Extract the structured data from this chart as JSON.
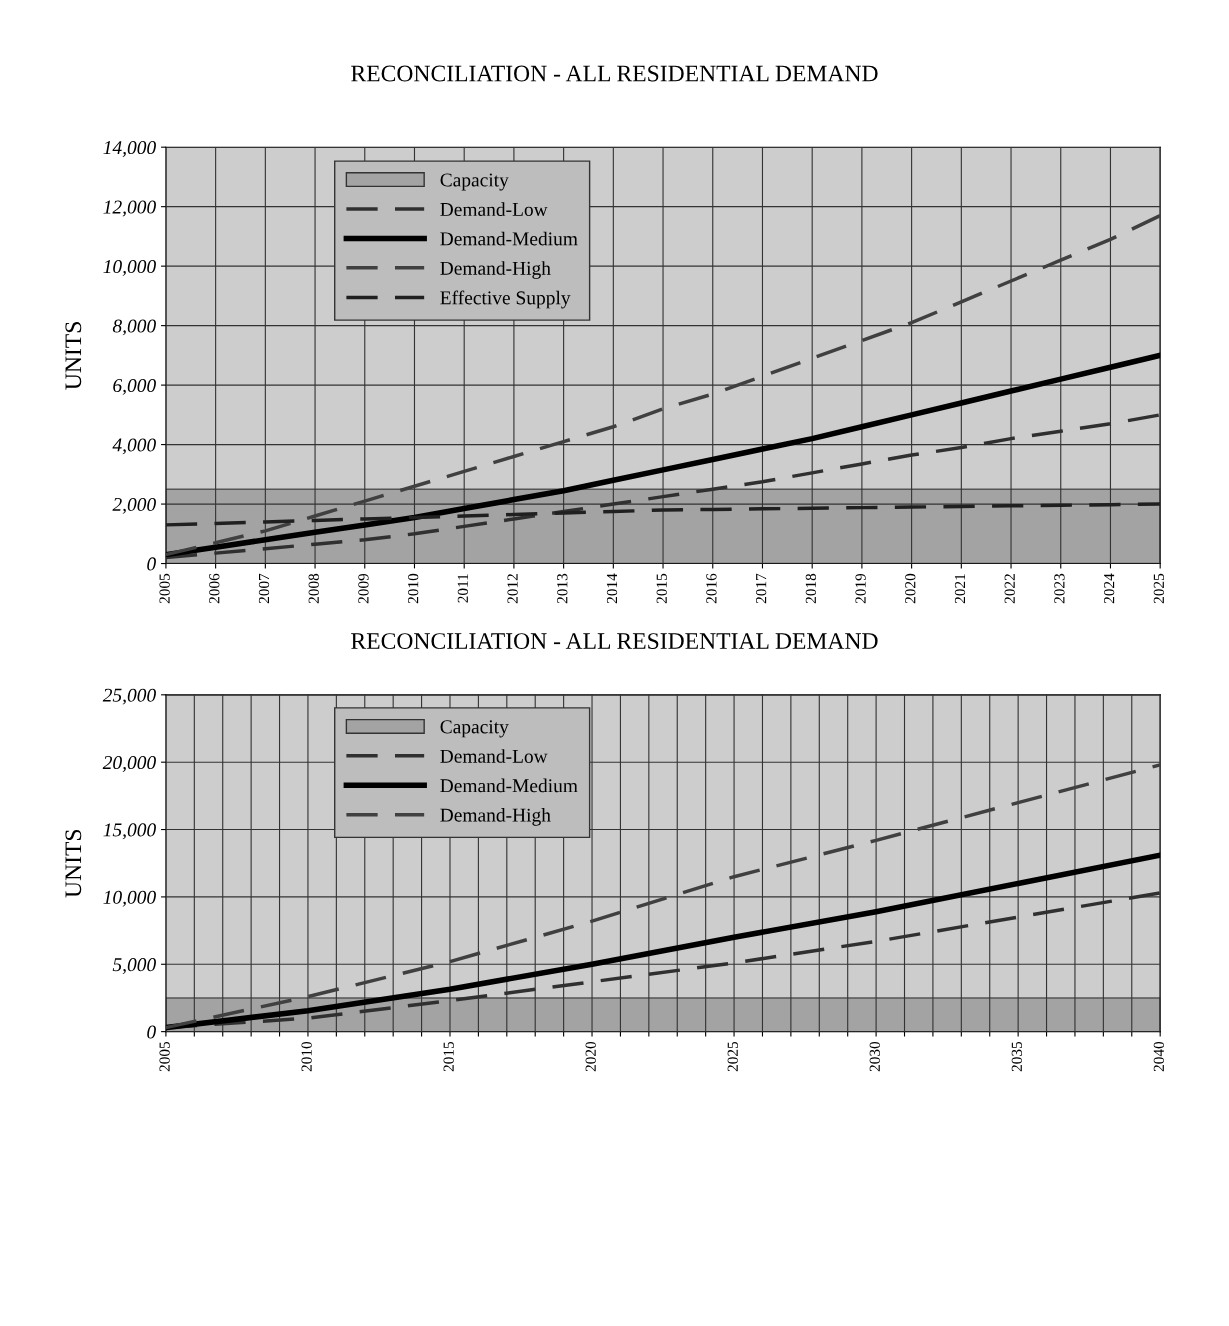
{
  "chart_data": [
    {
      "type": "line",
      "title": "RECONCILIATION - ALL RESIDENTIAL DEMAND",
      "ylabel": "UNITS",
      "x": [
        2005,
        2006,
        2007,
        2008,
        2009,
        2010,
        2011,
        2012,
        2013,
        2014,
        2015,
        2016,
        2017,
        2018,
        2019,
        2020,
        2021,
        2022,
        2023,
        2024,
        2025
      ],
      "series": [
        {
          "name": "Capacity",
          "type": "area",
          "color": "#a3a3a3",
          "values": [
            2500,
            2500,
            2500,
            2500,
            2500,
            2500,
            2500,
            2500,
            2500,
            2500,
            2500,
            2500,
            2500,
            2500,
            2500,
            2500,
            2500,
            2500,
            2500,
            2500,
            2500
          ]
        },
        {
          "name": "Demand-Low",
          "color": "#303030",
          "line_style": "dashed",
          "values": [
            200,
            350,
            500,
            650,
            800,
            1000,
            1250,
            1500,
            1750,
            2000,
            2250,
            2500,
            2750,
            3050,
            3350,
            3650,
            3900,
            4200,
            4450,
            4700,
            5000
          ]
        },
        {
          "name": "Demand-Medium",
          "color": "#000000",
          "line_style": "solid",
          "values": [
            300,
            550,
            800,
            1050,
            1300,
            1550,
            1850,
            2150,
            2450,
            2800,
            3150,
            3500,
            3850,
            4200,
            4600,
            5000,
            5400,
            5800,
            6200,
            6600,
            7000
          ]
        },
        {
          "name": "Demand-High",
          "color": "#404040",
          "line_style": "dashed",
          "values": [
            300,
            700,
            1100,
            1600,
            2100,
            2600,
            3100,
            3600,
            4100,
            4600,
            5200,
            5700,
            6300,
            6900,
            7500,
            8100,
            8800,
            9500,
            10200,
            10900,
            11700
          ]
        },
        {
          "name": "Effective Supply",
          "color": "#202020",
          "line_style": "dashed",
          "values": [
            1300,
            1350,
            1400,
            1450,
            1500,
            1550,
            1600,
            1650,
            1700,
            1750,
            1800,
            1820,
            1840,
            1860,
            1880,
            1900,
            1920,
            1940,
            1960,
            1980,
            2000
          ]
        }
      ],
      "xlim": [
        2005,
        2025
      ],
      "xticks": [
        2005,
        2006,
        2007,
        2008,
        2009,
        2010,
        2011,
        2012,
        2013,
        2014,
        2015,
        2016,
        2017,
        2018,
        2019,
        2020,
        2021,
        2022,
        2023,
        2024,
        2025
      ],
      "ylim": [
        0,
        14000
      ],
      "yticks": [
        {
          "value": 0,
          "label": "0"
        },
        {
          "value": 2000,
          "label": "2,000"
        },
        {
          "value": 4000,
          "label": "4,000"
        },
        {
          "value": 6000,
          "label": "6,000"
        },
        {
          "value": 8000,
          "label": "8,000"
        },
        {
          "value": 10000,
          "label": "10,000"
        },
        {
          "value": 12000,
          "label": "12,000"
        },
        {
          "value": 14000,
          "label": "14,000"
        }
      ],
      "grid": true,
      "legend": "top left"
    },
    {
      "type": "line",
      "title": "RECONCILIATION - ALL RESIDENTIAL DEMAND",
      "ylabel": "UNITS",
      "x": [
        2005,
        2010,
        2015,
        2020,
        2025,
        2030,
        2035,
        2040
      ],
      "series": [
        {
          "name": "Capacity",
          "type": "area",
          "color": "#a3a3a3",
          "values": [
            2500,
            2500,
            2500,
            2500,
            2500,
            2500,
            2500,
            2500
          ]
        },
        {
          "name": "Demand-Low",
          "color": "#303030",
          "line_style": "dashed",
          "values": [
            300,
            1000,
            2300,
            3700,
            5100,
            6700,
            8500,
            10300
          ]
        },
        {
          "name": "Demand-Medium",
          "color": "#000000",
          "line_style": "solid",
          "values": [
            300,
            1550,
            3150,
            5000,
            7000,
            8900,
            11000,
            13100
          ]
        },
        {
          "name": "Demand-High",
          "color": "#404040",
          "line_style": "dashed",
          "values": [
            300,
            2600,
            5200,
            8200,
            11500,
            14200,
            17000,
            19800
          ]
        }
      ],
      "xlim": [
        2005,
        2040
      ],
      "xticks": [
        2005,
        {
          "value": 2006,
          "label": null
        },
        {
          "value": 2007,
          "label": null
        },
        {
          "value": 2008,
          "label": null
        },
        {
          "value": 2009,
          "label": null
        },
        2010,
        {
          "value": 2011,
          "label": null
        },
        {
          "value": 2012,
          "label": null
        },
        {
          "value": 2013,
          "label": null
        },
        {
          "value": 2014,
          "label": null
        },
        2015,
        {
          "value": 2016,
          "label": null
        },
        {
          "value": 2017,
          "label": null
        },
        {
          "value": 2018,
          "label": null
        },
        {
          "value": 2019,
          "label": null
        },
        2020,
        {
          "value": 2021,
          "label": null
        },
        {
          "value": 2022,
          "label": null
        },
        {
          "value": 2023,
          "label": null
        },
        {
          "value": 2024,
          "label": null
        },
        2025,
        {
          "value": 2026,
          "label": null
        },
        {
          "value": 2027,
          "label": null
        },
        {
          "value": 2028,
          "label": null
        },
        {
          "value": 2029,
          "label": null
        },
        2030,
        {
          "value": 2031,
          "label": null
        },
        {
          "value": 2032,
          "label": null
        },
        {
          "value": 2033,
          "label": null
        },
        {
          "value": 2034,
          "label": null
        },
        2035,
        {
          "value": 2036,
          "label": null
        },
        {
          "value": 2037,
          "label": null
        },
        {
          "value": 2038,
          "label": null
        },
        {
          "value": 2039,
          "label": null
        },
        2040
      ],
      "ylim": [
        0,
        25000
      ],
      "yticks": [
        {
          "value": 0,
          "label": "0"
        },
        {
          "value": 5000,
          "label": "5,000"
        },
        {
          "value": 10000,
          "label": "10,000"
        },
        {
          "value": 15000,
          "label": "15,000"
        },
        {
          "value": 20000,
          "label": "20,000"
        },
        {
          "value": 25000,
          "label": "25,000"
        }
      ],
      "grid": true,
      "legend": "top left"
    }
  ]
}
